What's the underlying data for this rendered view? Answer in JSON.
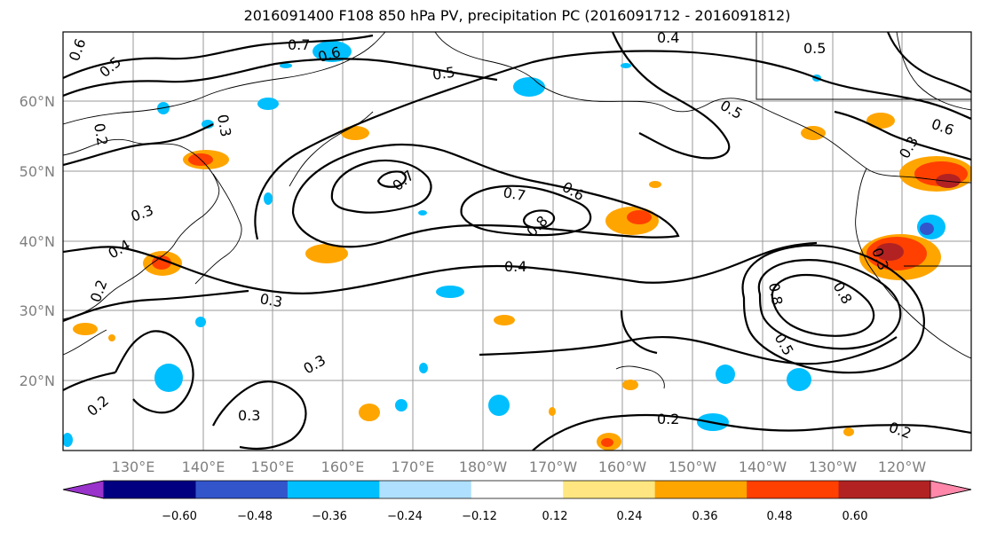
{
  "title": "2016091400 F108 850 hPa PV, precipitation PC (2016091712 - 2016091812)",
  "lat_labels": [
    "60°N",
    "50°N",
    "40°N",
    "30°N",
    "20°N"
  ],
  "lon_labels": [
    "130°E",
    "140°E",
    "150°E",
    "160°E",
    "170°E",
    "180°W",
    "170°W",
    "160°W",
    "150°W",
    "140°W",
    "130°W",
    "120°W"
  ],
  "colorbar": {
    "tick_labels": [
      "−0.60",
      "−0.48",
      "−0.36",
      "−0.24",
      "−0.12",
      "0.12",
      "0.24",
      "0.36",
      "0.48",
      "0.60"
    ],
    "colors": [
      "#9933cc",
      "#000080",
      "#3355cc",
      "#00bfff",
      "#b0e0ff",
      "#ffffff",
      "#ffe680",
      "#ffa500",
      "#ff4000",
      "#b22222",
      "#ff88aa"
    ]
  },
  "contour_labels": {
    "l1": "0.6",
    "l2": "0.5",
    "l3": "0.7",
    "l4": "0.6",
    "l5": "0.4",
    "l6": "0.5",
    "l7": "0.5",
    "l8": "0.2",
    "l9": "0.3",
    "l10": "0.5",
    "l11": "0.6",
    "l12": "0.7",
    "l13": "0.7",
    "l14": "0.6",
    "l15": "0.8",
    "l16": "0.4",
    "l17": "0.3",
    "l18": "0.3",
    "l19": "0.3",
    "l20": "0.2",
    "l21": "0.2",
    "l22": "0.3",
    "l23": "0.4",
    "l24": "0.8",
    "l25": "0.5",
    "l26": "0.2",
    "l27": "0.3",
    "l28": "0.3",
    "l29": "0.8"
  }
}
